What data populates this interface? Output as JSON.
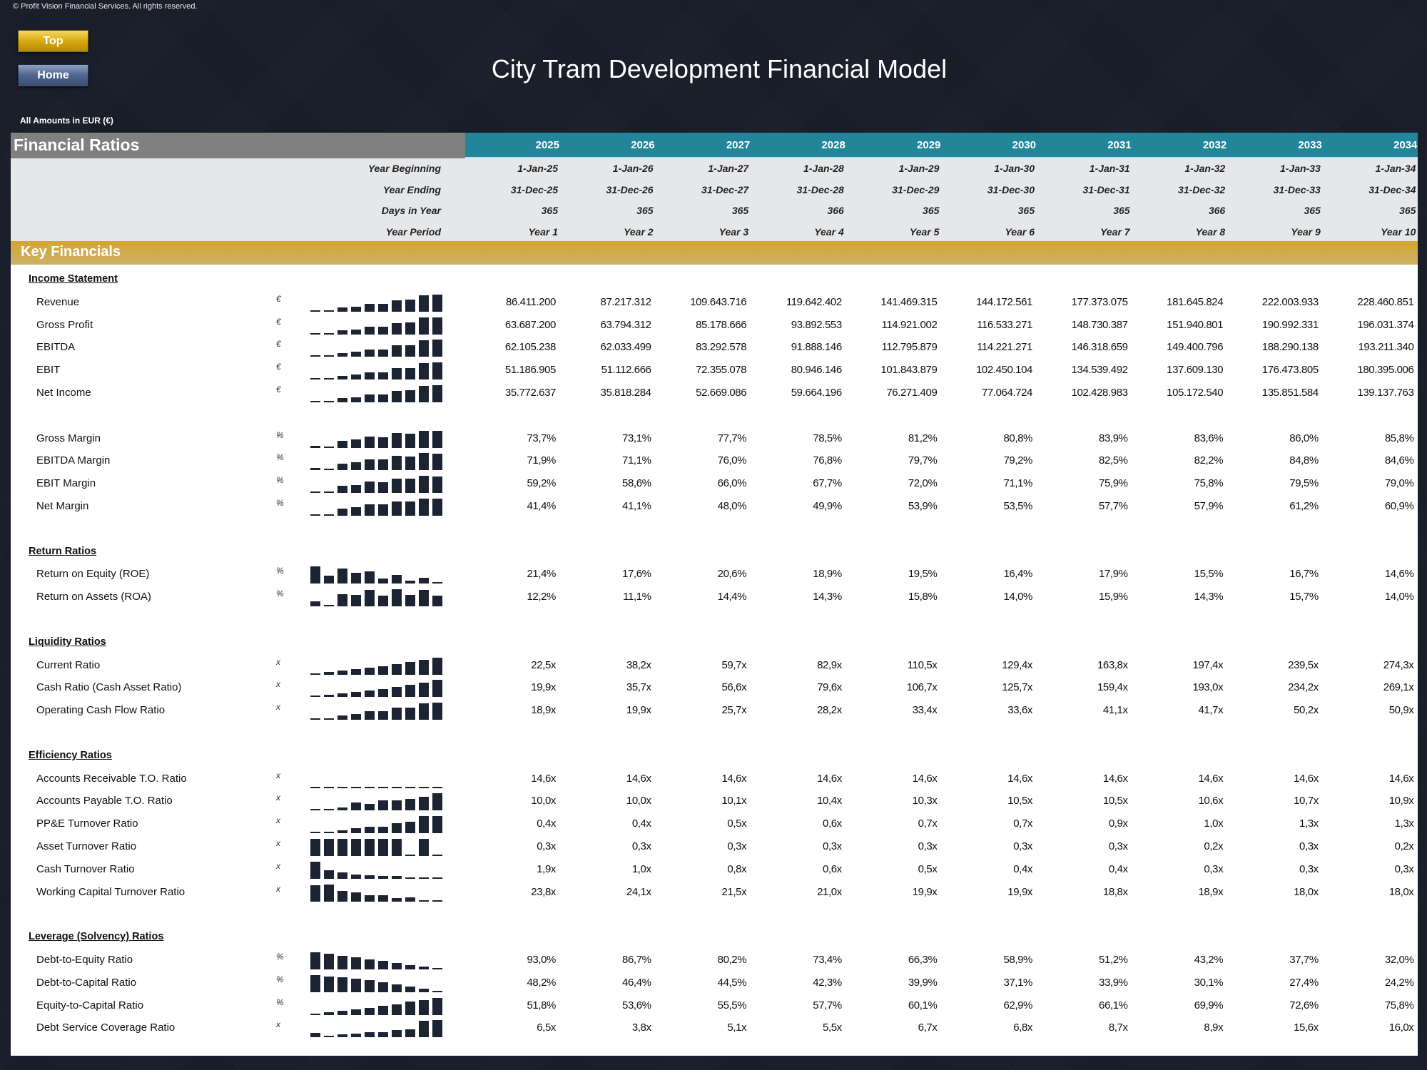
{
  "copyright": "© Profit Vision Financial Services. All rights reserved.",
  "buttons": {
    "top": "Top",
    "home": "Home"
  },
  "title": "City Tram Development Financial Model",
  "currency_note": "All Amounts in  EUR (€)",
  "header": {
    "label": "Financial Ratios",
    "years": [
      "2025",
      "2026",
      "2027",
      "2028",
      "2029",
      "2030",
      "2031",
      "2032",
      "2033",
      "2034"
    ]
  },
  "info_rows": [
    {
      "label": "Year Beginning",
      "values": [
        "1-Jan-25",
        "1-Jan-26",
        "1-Jan-27",
        "1-Jan-28",
        "1-Jan-29",
        "1-Jan-30",
        "1-Jan-31",
        "1-Jan-32",
        "1-Jan-33",
        "1-Jan-34"
      ]
    },
    {
      "label": "Year Ending",
      "values": [
        "31-Dec-25",
        "31-Dec-26",
        "31-Dec-27",
        "31-Dec-28",
        "31-Dec-29",
        "31-Dec-30",
        "31-Dec-31",
        "31-Dec-32",
        "31-Dec-33",
        "31-Dec-34"
      ]
    },
    {
      "label": "Days in Year",
      "values": [
        "365",
        "365",
        "365",
        "366",
        "365",
        "365",
        "365",
        "366",
        "365",
        "365"
      ]
    },
    {
      "label": "Year Period",
      "values": [
        "Year 1",
        "Year 2",
        "Year 3",
        "Year 4",
        "Year 5",
        "Year 6",
        "Year 7",
        "Year 8",
        "Year 9",
        "Year 10"
      ]
    }
  ],
  "section_band": "Key Financials",
  "colors": {
    "teal": "#238599",
    "gold": "#d5a62e",
    "gray": "#808080",
    "bar": "#1c2433"
  },
  "groups": [
    {
      "title": "Income Statement",
      "rows": [
        {
          "label": "Revenue",
          "unit": "€",
          "values": [
            "86.411.200",
            "87.217.312",
            "109.643.716",
            "119.642.402",
            "141.469.315",
            "144.172.561",
            "177.373.075",
            "181.645.824",
            "222.003.933",
            "228.460.851"
          ]
        },
        {
          "label": "Gross Profit",
          "unit": "€",
          "values": [
            "63.687.200",
            "63.794.312",
            "85.178.666",
            "93.892.553",
            "114.921.002",
            "116.533.271",
            "148.730.387",
            "151.940.801",
            "190.992.331",
            "196.031.374"
          ]
        },
        {
          "label": "EBITDA",
          "unit": "€",
          "values": [
            "62.105.238",
            "62.033.499",
            "83.292.578",
            "91.888.146",
            "112.795.879",
            "114.221.271",
            "146.318.659",
            "149.400.796",
            "188.290.138",
            "193.211.340"
          ]
        },
        {
          "label": "EBIT",
          "unit": "€",
          "values": [
            "51.186.905",
            "51.112.666",
            "72.355.078",
            "80.946.146",
            "101.843.879",
            "102.450.104",
            "134.539.492",
            "137.609.130",
            "176.473.805",
            "180.395.006"
          ]
        },
        {
          "label": "Net Income",
          "unit": "€",
          "values": [
            "35.772.637",
            "35.818.284",
            "52.669.086",
            "59.664.196",
            "76.271.409",
            "77.064.724",
            "102.428.983",
            "105.172.540",
            "135.851.584",
            "139.137.763"
          ]
        },
        null,
        {
          "label": "Gross Margin",
          "unit": "%",
          "values": [
            "73,7%",
            "73,1%",
            "77,7%",
            "78,5%",
            "81,2%",
            "80,8%",
            "83,9%",
            "83,6%",
            "86,0%",
            "85,8%"
          ]
        },
        {
          "label": "EBITDA Margin",
          "unit": "%",
          "values": [
            "71,9%",
            "71,1%",
            "76,0%",
            "76,8%",
            "79,7%",
            "79,2%",
            "82,5%",
            "82,2%",
            "84,8%",
            "84,6%"
          ]
        },
        {
          "label": "EBIT Margin",
          "unit": "%",
          "values": [
            "59,2%",
            "58,6%",
            "66,0%",
            "67,7%",
            "72,0%",
            "71,1%",
            "75,9%",
            "75,8%",
            "79,5%",
            "79,0%"
          ]
        },
        {
          "label": "Net Margin",
          "unit": "%",
          "values": [
            "41,4%",
            "41,1%",
            "48,0%",
            "49,9%",
            "53,9%",
            "53,5%",
            "57,7%",
            "57,9%",
            "61,2%",
            "60,9%"
          ]
        }
      ]
    },
    {
      "title": "Return Ratios",
      "rows": [
        {
          "label": "Return on Equity (ROE)",
          "unit": "%",
          "values": [
            "21,4%",
            "17,6%",
            "20,6%",
            "18,9%",
            "19,5%",
            "16,4%",
            "17,9%",
            "15,5%",
            "16,7%",
            "14,6%"
          ]
        },
        {
          "label": "Return on Assets (ROA)",
          "unit": "%",
          "values": [
            "12,2%",
            "11,1%",
            "14,4%",
            "14,3%",
            "15,8%",
            "14,0%",
            "15,9%",
            "14,3%",
            "15,7%",
            "14,0%"
          ]
        }
      ]
    },
    {
      "title": "Liquidity Ratios",
      "rows": [
        {
          "label": "Current Ratio",
          "unit": "x",
          "values": [
            "22,5x",
            "38,2x",
            "59,7x",
            "82,9x",
            "110,5x",
            "129,4x",
            "163,8x",
            "197,4x",
            "239,5x",
            "274,3x"
          ]
        },
        {
          "label": "Cash Ratio (Cash Asset Ratio)",
          "unit": "x",
          "values": [
            "19,9x",
            "35,7x",
            "56,6x",
            "79,6x",
            "106,7x",
            "125,7x",
            "159,4x",
            "193,0x",
            "234,2x",
            "269,1x"
          ]
        },
        {
          "label": "Operating Cash Flow Ratio",
          "unit": "x",
          "values": [
            "18,9x",
            "19,9x",
            "25,7x",
            "28,2x",
            "33,4x",
            "33,6x",
            "41,1x",
            "41,7x",
            "50,2x",
            "50,9x"
          ]
        }
      ]
    },
    {
      "title": "Efficiency Ratios",
      "rows": [
        {
          "label": "Accounts Receivable T.O. Ratio",
          "unit": "x",
          "values": [
            "14,6x",
            "14,6x",
            "14,6x",
            "14,6x",
            "14,6x",
            "14,6x",
            "14,6x",
            "14,6x",
            "14,6x",
            "14,6x"
          ]
        },
        {
          "label": "Accounts Payable T.O. Ratio",
          "unit": "x",
          "values": [
            "10,0x",
            "10,0x",
            "10,1x",
            "10,4x",
            "10,3x",
            "10,5x",
            "10,5x",
            "10,6x",
            "10,7x",
            "10,9x"
          ]
        },
        {
          "label": "PP&E Turnover Ratio",
          "unit": "x",
          "values": [
            "0,4x",
            "0,4x",
            "0,5x",
            "0,6x",
            "0,7x",
            "0,7x",
            "0,9x",
            "1,0x",
            "1,3x",
            "1,3x"
          ]
        },
        {
          "label": "Asset Turnover Ratio",
          "unit": "x",
          "values": [
            "0,3x",
            "0,3x",
            "0,3x",
            "0,3x",
            "0,3x",
            "0,3x",
            "0,3x",
            "0,2x",
            "0,3x",
            "0,2x"
          ]
        },
        {
          "label": "Cash Turnover Ratio",
          "unit": "x",
          "values": [
            "1,9x",
            "1,0x",
            "0,8x",
            "0,6x",
            "0,5x",
            "0,4x",
            "0,4x",
            "0,3x",
            "0,3x",
            "0,3x"
          ]
        },
        {
          "label": "Working Capital Turnover Ratio",
          "unit": "x",
          "values": [
            "23,8x",
            "24,1x",
            "21,5x",
            "21,0x",
            "19,9x",
            "19,9x",
            "18,8x",
            "18,9x",
            "18,0x",
            "18,0x"
          ]
        }
      ]
    },
    {
      "title": "Leverage (Solvency) Ratios",
      "rows": [
        {
          "label": "Debt-to-Equity Ratio",
          "unit": "%",
          "values": [
            "93,0%",
            "86,7%",
            "80,2%",
            "73,4%",
            "66,3%",
            "58,9%",
            "51,2%",
            "43,2%",
            "37,7%",
            "32,0%"
          ]
        },
        {
          "label": "Debt-to-Capital Ratio",
          "unit": "%",
          "values": [
            "48,2%",
            "46,4%",
            "44,5%",
            "42,3%",
            "39,9%",
            "37,1%",
            "33,9%",
            "30,1%",
            "27,4%",
            "24,2%"
          ]
        },
        {
          "label": "Equity-to-Capital Ratio",
          "unit": "%",
          "values": [
            "51,8%",
            "53,6%",
            "55,5%",
            "57,7%",
            "60,1%",
            "62,9%",
            "66,1%",
            "69,9%",
            "72,6%",
            "75,8%"
          ]
        },
        {
          "label": "Debt Service Coverage Ratio",
          "unit": "x",
          "values": [
            "6,5x",
            "3,8x",
            "5,1x",
            "5,5x",
            "6,7x",
            "6,8x",
            "8,7x",
            "8,9x",
            "15,6x",
            "16,0x"
          ]
        }
      ]
    }
  ]
}
